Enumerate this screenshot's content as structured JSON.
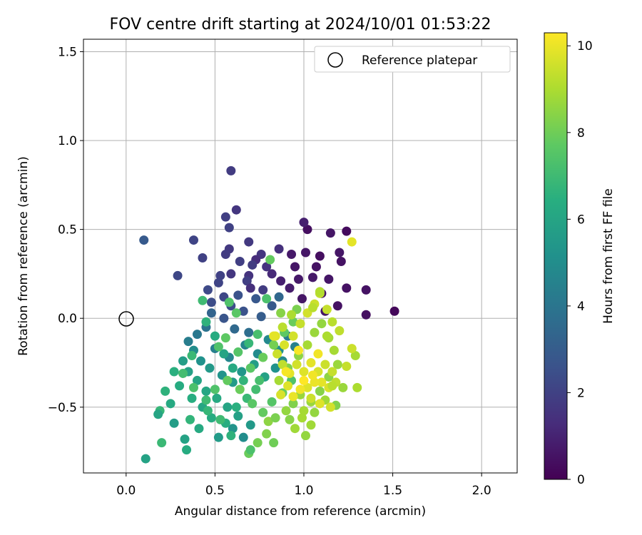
{
  "chart_data": {
    "type": "scatter",
    "title": "FOV centre drift starting at 2024/10/01 01:53:22",
    "xlabel": "Angular distance from reference (arcmin)",
    "ylabel": "Rotation from reference (arcmin)",
    "xlim": [
      -0.24,
      2.2
    ],
    "ylim": [
      -0.87,
      1.57
    ],
    "x_ticks": [
      "0.0",
      "0.5",
      "1.0",
      "1.5",
      "2.0"
    ],
    "y_ticks": [
      "−0.5",
      "0.0",
      "0.5",
      "1.0",
      "1.5"
    ],
    "grid": true,
    "legend": {
      "position": "top-right",
      "entries": [
        "Reference platepar"
      ]
    },
    "reference_point": {
      "x": 0.0,
      "y": 0.0
    },
    "colorbar": {
      "label": "Hours from first FF file",
      "colormap": "viridis",
      "range": [
        0,
        10.3
      ],
      "ticks": [
        "0",
        "2",
        "4",
        "6",
        "8",
        "10"
      ]
    },
    "points": [
      [
        1.51,
        0.04,
        0.2
      ],
      [
        1.35,
        0.02,
        0.4
      ],
      [
        1.35,
        0.16,
        0.5
      ],
      [
        1.24,
        0.17,
        0.5
      ],
      [
        1.24,
        0.49,
        0.3
      ],
      [
        1.15,
        0.48,
        0.6
      ],
      [
        1.02,
        0.5,
        0.4
      ],
      [
        1.0,
        0.54,
        0.9
      ],
      [
        1.2,
        0.37,
        0.6
      ],
      [
        1.21,
        0.32,
        0.5
      ],
      [
        1.14,
        0.22,
        0.6
      ],
      [
        1.09,
        0.35,
        0.4
      ],
      [
        1.07,
        0.29,
        0.5
      ],
      [
        1.05,
        0.23,
        0.7
      ],
      [
        1.1,
        0.14,
        0.6
      ],
      [
        1.19,
        0.07,
        0.5
      ],
      [
        1.12,
        0.04,
        0.6
      ],
      [
        1.01,
        0.37,
        0.6
      ],
      [
        0.93,
        0.36,
        0.7
      ],
      [
        0.95,
        0.29,
        0.6
      ],
      [
        0.97,
        0.22,
        0.7
      ],
      [
        0.92,
        0.17,
        0.8
      ],
      [
        0.87,
        0.21,
        0.9
      ],
      [
        0.99,
        0.11,
        0.6
      ],
      [
        0.86,
        0.39,
        1.4
      ],
      [
        0.76,
        0.36,
        1.6
      ],
      [
        0.73,
        0.33,
        1.3
      ],
      [
        0.71,
        0.3,
        1.8
      ],
      [
        0.79,
        0.29,
        1.5
      ],
      [
        0.82,
        0.25,
        1.2
      ],
      [
        0.69,
        0.24,
        1.5
      ],
      [
        0.68,
        0.21,
        1.9
      ],
      [
        0.7,
        0.17,
        1.4
      ],
      [
        0.77,
        0.16,
        1.8
      ],
      [
        0.62,
        0.61,
        1.6
      ],
      [
        0.59,
        0.83,
        1.8
      ],
      [
        0.56,
        0.57,
        1.9
      ],
      [
        0.58,
        0.51,
        2.0
      ],
      [
        0.69,
        0.43,
        1.7
      ],
      [
        0.58,
        0.39,
        1.7
      ],
      [
        0.56,
        0.36,
        1.8
      ],
      [
        0.64,
        0.32,
        1.9
      ],
      [
        0.59,
        0.25,
        1.6
      ],
      [
        0.53,
        0.24,
        2.0
      ],
      [
        0.52,
        0.2,
        2.1
      ],
      [
        0.46,
        0.16,
        2.3
      ],
      [
        0.55,
        0.12,
        2.2
      ],
      [
        0.48,
        0.09,
        2.4
      ],
      [
        0.38,
        0.44,
        2.1
      ],
      [
        0.43,
        0.34,
        2.0
      ],
      [
        0.29,
        0.24,
        2.2
      ],
      [
        0.1,
        0.44,
        2.9
      ],
      [
        0.63,
        0.13,
        2.6
      ],
      [
        0.59,
        0.07,
        2.4
      ],
      [
        0.66,
        0.04,
        2.6
      ],
      [
        0.55,
        0.0,
        2.7
      ],
      [
        0.73,
        0.11,
        2.8
      ],
      [
        0.82,
        0.07,
        2.9
      ],
      [
        0.76,
        0.01,
        3.0
      ],
      [
        0.86,
        0.12,
        3.4
      ],
      [
        0.61,
        -0.06,
        3.5
      ],
      [
        0.69,
        -0.08,
        3.7
      ],
      [
        0.45,
        -0.05,
        3.9
      ],
      [
        0.48,
        0.03,
        3.3
      ],
      [
        0.4,
        -0.09,
        4.1
      ],
      [
        0.35,
        -0.13,
        4.3
      ],
      [
        0.5,
        -0.17,
        4.4
      ],
      [
        0.58,
        -0.22,
        4.7
      ],
      [
        0.67,
        -0.15,
        4.6
      ],
      [
        0.74,
        -0.2,
        4.9
      ],
      [
        0.8,
        -0.12,
        4.8
      ],
      [
        0.86,
        -0.18,
        5.1
      ],
      [
        0.91,
        -0.1,
        4.3
      ],
      [
        0.95,
        -0.16,
        4.5
      ],
      [
        0.38,
        -0.18,
        5.0
      ],
      [
        0.42,
        -0.24,
        5.2
      ],
      [
        0.47,
        -0.28,
        5.5
      ],
      [
        0.54,
        -0.32,
        5.3
      ],
      [
        0.6,
        -0.36,
        5.6
      ],
      [
        0.65,
        -0.3,
        5.4
      ],
      [
        0.72,
        -0.26,
        5.7
      ],
      [
        0.78,
        -0.33,
        5.9
      ],
      [
        0.84,
        -0.28,
        5.2
      ],
      [
        0.88,
        -0.24,
        4.8
      ],
      [
        0.32,
        -0.24,
        5.7
      ],
      [
        0.35,
        -0.3,
        5.8
      ],
      [
        0.4,
        -0.35,
        6.0
      ],
      [
        0.45,
        -0.41,
        6.1
      ],
      [
        0.51,
        -0.45,
        6.2
      ],
      [
        0.57,
        -0.5,
        6.0
      ],
      [
        0.63,
        -0.55,
        5.8
      ],
      [
        0.7,
        -0.6,
        5.5
      ],
      [
        0.66,
        -0.67,
        5.0
      ],
      [
        0.6,
        -0.62,
        5.3
      ],
      [
        0.52,
        -0.67,
        5.6
      ],
      [
        0.56,
        -0.59,
        6.4
      ],
      [
        0.48,
        -0.56,
        6.3
      ],
      [
        0.43,
        -0.5,
        6.1
      ],
      [
        0.37,
        -0.45,
        6.4
      ],
      [
        0.3,
        -0.38,
        6.3
      ],
      [
        0.27,
        -0.3,
        6.5
      ],
      [
        0.22,
        -0.41,
        6.6
      ],
      [
        0.25,
        -0.48,
        6.2
      ],
      [
        0.19,
        -0.52,
        6.8
      ],
      [
        0.18,
        -0.54,
        6.0
      ],
      [
        0.2,
        -0.7,
        6.9
      ],
      [
        0.11,
        -0.79,
        5.9
      ],
      [
        0.27,
        -0.59,
        5.7
      ],
      [
        0.33,
        -0.68,
        5.9
      ],
      [
        0.34,
        -0.74,
        6.3
      ],
      [
        0.36,
        -0.57,
        6.7
      ],
      [
        0.41,
        -0.62,
        6.2
      ],
      [
        0.46,
        -0.52,
        6.8
      ],
      [
        0.53,
        -0.57,
        7.0
      ],
      [
        0.59,
        -0.66,
        6.6
      ],
      [
        0.62,
        -0.5,
        6.5
      ],
      [
        0.68,
        -0.45,
        6.9
      ],
      [
        0.73,
        -0.4,
        7.1
      ],
      [
        0.66,
        -0.35,
        6.7
      ],
      [
        0.6,
        -0.28,
        6.2
      ],
      [
        0.55,
        -0.2,
        6.0
      ],
      [
        0.5,
        -0.1,
        6.3
      ],
      [
        0.45,
        -0.02,
        6.6
      ],
      [
        0.43,
        0.1,
        7.0
      ],
      [
        0.58,
        0.09,
        7.4
      ],
      [
        0.62,
        0.03,
        7.6
      ],
      [
        0.79,
        0.11,
        7.3
      ],
      [
        0.81,
        0.33,
        7.8
      ],
      [
        0.74,
        -0.09,
        7.2
      ],
      [
        0.69,
        -0.14,
        6.8
      ],
      [
        0.63,
        -0.19,
        7.5
      ],
      [
        0.56,
        -0.11,
        7.7
      ],
      [
        0.52,
        -0.16,
        7.4
      ],
      [
        0.37,
        -0.21,
        6.9
      ],
      [
        0.32,
        -0.31,
        7.1
      ],
      [
        0.38,
        -0.39,
        7.3
      ],
      [
        0.45,
        -0.46,
        7.0
      ],
      [
        0.5,
        -0.4,
        7.4
      ],
      [
        0.57,
        -0.35,
        7.8
      ],
      [
        0.64,
        -0.4,
        7.9
      ],
      [
        0.71,
        -0.48,
        7.6
      ],
      [
        0.77,
        -0.53,
        7.8
      ],
      [
        0.82,
        -0.47,
        7.5
      ],
      [
        0.88,
        -0.42,
        7.9
      ],
      [
        0.93,
        -0.35,
        7.4
      ],
      [
        0.75,
        -0.35,
        7.2
      ],
      [
        0.7,
        -0.28,
        7.6
      ],
      [
        0.77,
        -0.22,
        7.9
      ],
      [
        0.83,
        -0.15,
        8.1
      ],
      [
        0.89,
        -0.08,
        7.7
      ],
      [
        0.94,
        -0.02,
        7.9
      ],
      [
        0.96,
        0.05,
        8.2
      ],
      [
        0.87,
        0.03,
        8.4
      ],
      [
        0.69,
        -0.76,
        7.9
      ],
      [
        0.7,
        -0.74,
        7.3
      ],
      [
        0.74,
        -0.7,
        8.1
      ],
      [
        0.79,
        -0.65,
        8.3
      ],
      [
        0.83,
        -0.7,
        8.0
      ],
      [
        0.8,
        -0.58,
        8.5
      ],
      [
        0.84,
        -0.56,
        8.2
      ],
      [
        0.9,
        -0.52,
        8.6
      ],
      [
        0.94,
        -0.48,
        8.3
      ],
      [
        0.98,
        -0.43,
        8.7
      ],
      [
        0.92,
        -0.57,
        8.4
      ],
      [
        0.95,
        -0.62,
        8.8
      ],
      [
        0.99,
        -0.56,
        8.9
      ],
      [
        1.01,
        -0.66,
        8.6
      ],
      [
        1.04,
        -0.6,
        8.8
      ],
      [
        0.86,
        -0.35,
        8.9
      ],
      [
        0.91,
        -0.28,
        8.3
      ],
      [
        0.97,
        -0.21,
        8.5
      ],
      [
        1.02,
        -0.15,
        8.9
      ],
      [
        1.06,
        -0.08,
        8.7
      ],
      [
        1.1,
        -0.03,
        8.6
      ],
      [
        1.14,
        -0.11,
        8.8
      ],
      [
        1.17,
        -0.18,
        8.9
      ],
      [
        1.19,
        -0.26,
        8.7
      ],
      [
        1.14,
        -0.33,
        8.5
      ],
      [
        1.09,
        -0.41,
        8.4
      ],
      [
        1.04,
        -0.47,
        8.7
      ],
      [
        1.0,
        -0.52,
        8.9
      ],
      [
        1.06,
        -0.53,
        8.6
      ],
      [
        1.12,
        -0.46,
        8.8
      ],
      [
        1.18,
        -0.49,
        8.3
      ],
      [
        1.22,
        -0.39,
        8.7
      ],
      [
        1.29,
        -0.21,
        8.9
      ],
      [
        1.3,
        -0.39,
        9.0
      ],
      [
        1.27,
        -0.17,
        9.5
      ],
      [
        1.24,
        -0.27,
        9.4
      ],
      [
        1.2,
        -0.07,
        9.3
      ],
      [
        1.16,
        -0.02,
        9.2
      ],
      [
        1.13,
        0.05,
        9.4
      ],
      [
        1.09,
        0.14,
        9.3
      ],
      [
        1.06,
        0.08,
        9.5
      ],
      [
        1.02,
        0.03,
        9.6
      ],
      [
        0.98,
        -0.03,
        9.4
      ],
      [
        0.94,
        -0.1,
        9.6
      ],
      [
        0.89,
        -0.15,
        9.7
      ],
      [
        0.84,
        -0.1,
        9.8
      ],
      [
        0.85,
        -0.2,
        9.5
      ],
      [
        0.88,
        -0.26,
        9.3
      ],
      [
        0.92,
        -0.31,
        9.9
      ],
      [
        0.96,
        -0.26,
        9.6
      ],
      [
        1.0,
        -0.3,
        9.8
      ],
      [
        1.04,
        -0.25,
        9.9
      ],
      [
        1.08,
        -0.3,
        9.7
      ],
      [
        1.12,
        -0.26,
        9.5
      ],
      [
        1.16,
        -0.3,
        9.4
      ],
      [
        1.14,
        -0.39,
        9.7
      ],
      [
        1.1,
        -0.36,
        9.9
      ],
      [
        1.06,
        -0.36,
        10.0
      ],
      [
        1.02,
        -0.39,
        9.8
      ],
      [
        0.98,
        -0.4,
        10.1
      ],
      [
        0.94,
        -0.44,
        10.0
      ],
      [
        0.91,
        -0.38,
        9.8
      ],
      [
        0.87,
        -0.43,
        9.7
      ],
      [
        1.04,
        -0.45,
        9.5
      ],
      [
        1.09,
        -0.48,
        9.8
      ],
      [
        1.15,
        -0.5,
        9.6
      ],
      [
        1.18,
        -0.36,
        9.3
      ],
      [
        0.83,
        -0.1,
        9.9
      ],
      [
        0.9,
        -0.3,
        10.2
      ],
      [
        1.0,
        -0.35,
        10.3
      ],
      [
        1.05,
        -0.32,
        10.1
      ],
      [
        1.08,
        -0.2,
        10.1
      ],
      [
        0.97,
        -0.18,
        10.2
      ],
      [
        1.27,
        0.43,
        9.9
      ],
      [
        1.09,
        0.15,
        9.1
      ],
      [
        1.05,
        0.06,
        9.2
      ],
      [
        0.93,
        0.02,
        9.0
      ],
      [
        1.16,
        -0.38,
        9.2
      ],
      [
        1.13,
        -0.1,
        9.0
      ],
      [
        0.88,
        -0.05,
        9.2
      ]
    ]
  }
}
